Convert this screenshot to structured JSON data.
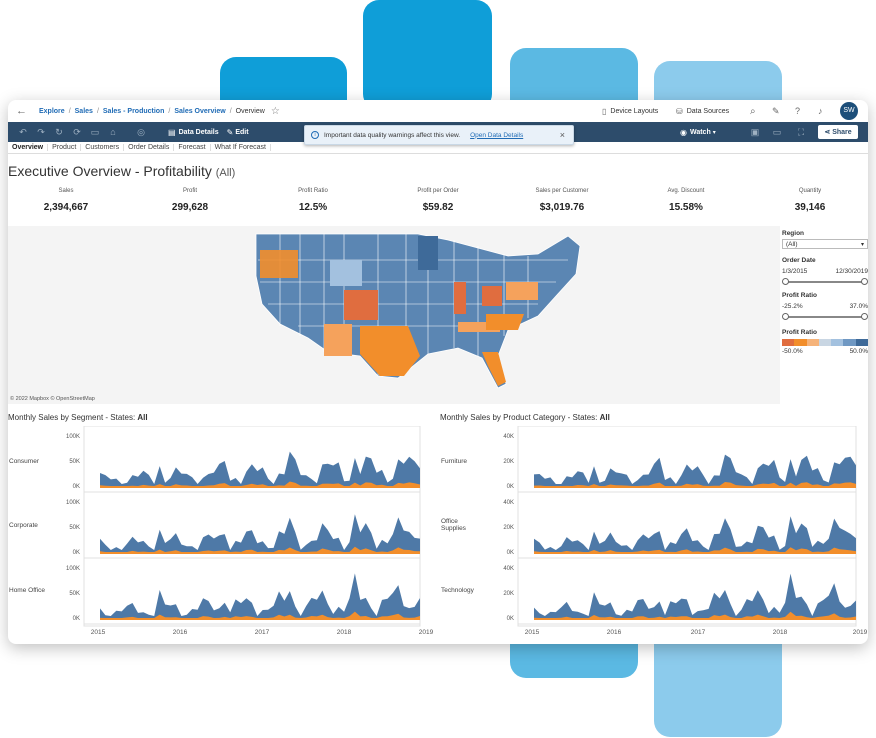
{
  "colors": {
    "deco_dark": "#0f9ed8",
    "deco_mid": "#5bb9e3",
    "deco_light": "#8ccbec",
    "toolbar": "#2d4c6b",
    "blue": "#4e79a7",
    "orange": "#f28e2b",
    "map_light": "#a3c1df"
  },
  "topbar": {
    "crumbs": [
      "Explore",
      "Sales",
      "Sales - Production",
      "Sales Overview",
      "Overview"
    ],
    "device_layouts": "Device Layouts",
    "data_sources": "Data Sources",
    "avatar": "SW"
  },
  "toolbar": {
    "data_details": "Data Details",
    "edit": "Edit",
    "watch": "Watch",
    "share": "Share"
  },
  "banner": {
    "message": "Important data quality warnings affect this view.",
    "link": "Open Data Details"
  },
  "tabs": [
    "Overview",
    "Product",
    "Customers",
    "Order Details",
    "Forecast",
    "What If Forecast"
  ],
  "title": {
    "main": "Executive Overview - Profitability",
    "filter": "(All)"
  },
  "kpis": [
    {
      "label": "Sales",
      "value": "2,394,667"
    },
    {
      "label": "Profit",
      "value": "299,628"
    },
    {
      "label": "Profit Ratio",
      "value": "12.5%"
    },
    {
      "label": "Profit per Order",
      "value": "$59.82"
    },
    {
      "label": "Sales per Customer",
      "value": "$3,019.76"
    },
    {
      "label": "Avg. Discount",
      "value": "15.58%"
    },
    {
      "label": "Quantity",
      "value": "39,146"
    }
  ],
  "map_attribution": "© 2022 Mapbox © OpenStreetMap",
  "filters": {
    "region_label": "Region",
    "region_value": "(All)",
    "order_date_label": "Order Date",
    "order_date_start": "1/3/2015",
    "order_date_end": "12/30/2019",
    "profit_ratio_label": "Profit Ratio",
    "profit_ratio_min": "-25.2%",
    "profit_ratio_max": "37.0%",
    "legend_label": "Profit Ratio",
    "legend_min": "-50.0%",
    "legend_max": "50.0%"
  },
  "left_chart": {
    "title": "Monthly Sales by Segment - States:",
    "title_bold": "All",
    "rows": [
      {
        "label": "Consumer",
        "ticks": [
          "100K",
          "50K",
          "0K"
        ]
      },
      {
        "label": "Corporate",
        "ticks": [
          "100K",
          "50K",
          "0K"
        ]
      },
      {
        "label": "Home Office",
        "ticks": [
          "100K",
          "50K",
          "0K"
        ]
      }
    ],
    "years": [
      "2015",
      "2016",
      "2017",
      "2018",
      "2019"
    ]
  },
  "right_chart": {
    "title": "Monthly Sales by Product Category - States:",
    "title_bold": "All",
    "rows": [
      {
        "label": "Furniture",
        "ticks": [
          "40K",
          "20K",
          "0K"
        ]
      },
      {
        "label": "Office Supplies",
        "ticks": [
          "40K",
          "20K",
          "0K"
        ]
      },
      {
        "label": "Technology",
        "ticks": [
          "40K",
          "20K",
          "0K"
        ]
      }
    ],
    "years": [
      "2015",
      "2016",
      "2017",
      "2018",
      "2019"
    ]
  }
}
